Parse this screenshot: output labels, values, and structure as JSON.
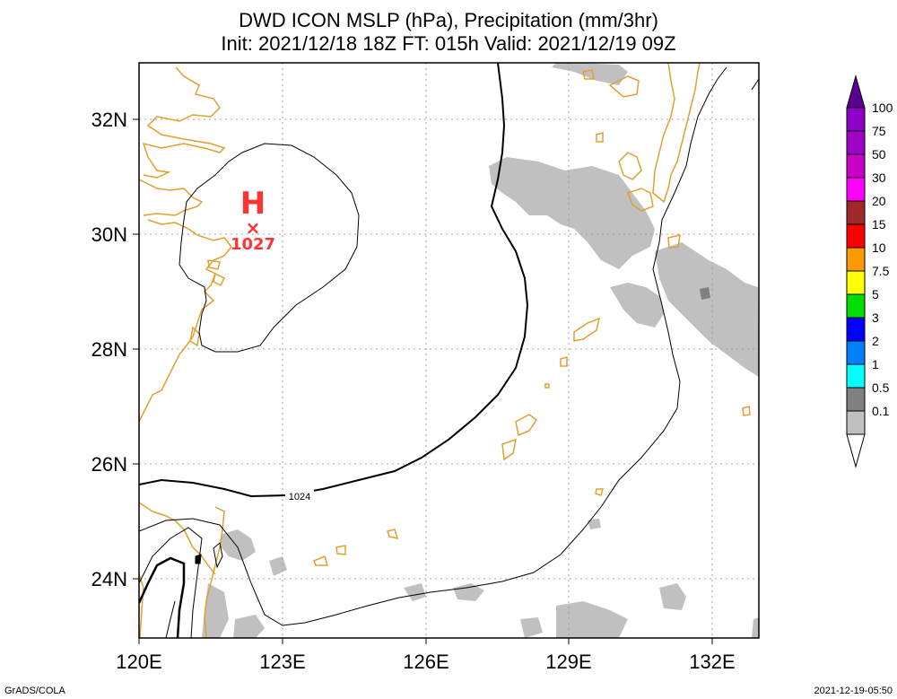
{
  "header": {
    "title": "DWD ICON MSLP (hPa), Precipitation (mm/3hr)",
    "subtitle": "Init: 2021/12/18 18Z  FT: 015h  Valid: 2021/12/19 09Z"
  },
  "map": {
    "region": "East China Sea / Ryukyu Islands",
    "lon_range": [
      120,
      133.5
    ],
    "lat_range": [
      23,
      33
    ],
    "x_ticks": [
      "120E",
      "123E",
      "126E",
      "129E",
      "132E"
    ],
    "y_ticks": [
      "32N",
      "30N",
      "28N",
      "26N",
      "24N"
    ],
    "coastline_color": "#e0a030",
    "grid": "dotted",
    "high_pressure": {
      "symbol": "H",
      "marker": "×",
      "value": "1027",
      "lon": 122.4,
      "lat": 30.1,
      "color": "#ff3333"
    },
    "isobars": [
      {
        "value": "1024",
        "label": "1024"
      }
    ]
  },
  "colorbar": {
    "labels": [
      "100",
      "75",
      "50",
      "30",
      "20",
      "15",
      "10",
      "7.5",
      "5",
      "3",
      "2",
      "1",
      "0.5",
      "0.1"
    ],
    "colors": [
      "#8c00c8",
      "#a000c8",
      "#c800c8",
      "#ff00ff",
      "#a02828",
      "#ff0000",
      "#ff9900",
      "#ffff00",
      "#00dd00",
      "#0000ff",
      "#0080ff",
      "#00ffff",
      "#808080",
      "#c0c0c0"
    ],
    "top_color": "#5a0090"
  },
  "footer": {
    "left": "GrADS/COLA",
    "right": "2021-12-19-05:50"
  }
}
